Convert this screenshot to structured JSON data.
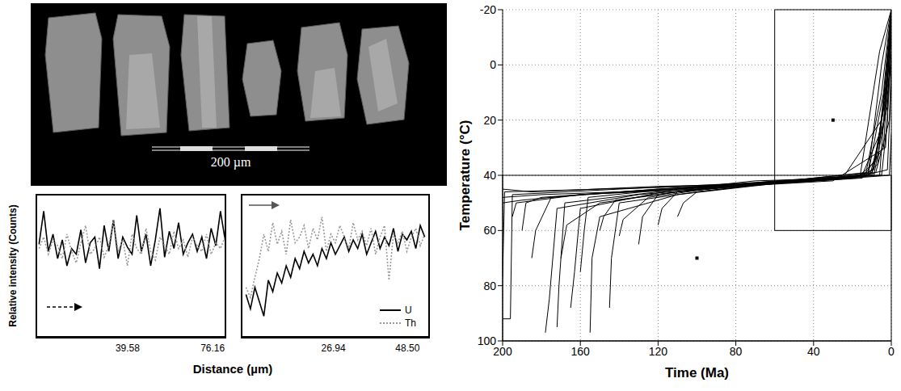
{
  "chart_data": [
    {
      "type": "image",
      "scale_bar": "200 µm"
    },
    {
      "type": "line",
      "xlabel": "Distance (µm)",
      "ylabel": "Relative intensity (Counts)",
      "tick_labels": "x",
      "legend": "lower right",
      "panels": [
        {
          "x": [
            1.5,
            3.5,
            5.5,
            7.5,
            9.5,
            11.5,
            13.5,
            15.5,
            17.5,
            19.5,
            21.5,
            23.5,
            25.5,
            27.5,
            29.5,
            31.5,
            33.5,
            35.5,
            37.5,
            39.5,
            41.5,
            43.5,
            45.5,
            47.5,
            49.5,
            51.5,
            53.5,
            55.5,
            57.5,
            59.5,
            61.5,
            63.5,
            65.5,
            67.5,
            69.5,
            71.5,
            73.5,
            75.5,
            77.5,
            79.5,
            81.5
          ],
          "xlim": [
            0,
            82
          ],
          "xticks": [
            39.58,
            76.16
          ],
          "ylim": [
            0,
            100
          ],
          "yticks": [],
          "series": [
            {
              "name": "U",
              "color": "#000000",
              "line_style": "solid",
              "values": [
                65,
                88,
                60,
                72,
                55,
                68,
                50,
                62,
                58,
                75,
                52,
                66,
                70,
                48,
                78,
                60,
                82,
                55,
                70,
                63,
                58,
                85,
                60,
                72,
                50,
                68,
                90,
                56,
                74,
                62,
                80,
                58,
                66,
                72,
                60,
                70,
                55,
                76,
                64,
                88,
                68
              ]
            },
            {
              "name": "Th",
              "color": "#999999",
              "line_style": "dotted",
              "values": [
                62,
                70,
                58,
                68,
                64,
                55,
                72,
                60,
                52,
                66,
                78,
                58,
                62,
                70,
                56,
                64,
                82,
                60,
                68,
                50,
                72,
                62,
                58,
                76,
                60,
                54,
                70,
                64,
                58,
                74,
                62,
                68,
                56,
                70,
                64,
                60,
                72,
                58,
                66,
                62,
                70
              ]
            }
          ]
        },
        {
          "x": [
            1.5,
            2.8,
            4.1,
            5.4,
            6.7,
            8.0,
            9.3,
            10.6,
            11.9,
            13.2,
            14.5,
            15.8,
            17.1,
            18.4,
            19.7,
            21.0,
            22.3,
            23.6,
            24.9,
            26.2,
            27.5,
            28.8,
            30.1,
            31.4,
            32.7,
            34.0,
            35.3,
            36.6,
            37.9,
            39.2,
            40.5,
            41.8,
            43.1,
            44.4,
            45.7,
            47.0,
            48.3,
            49.6,
            50.9,
            52.2,
            53.5
          ],
          "xlim": [
            0,
            55
          ],
          "xticks": [
            26.94,
            {
              "value": 48.5,
              "label": "48.50"
            }
          ],
          "ylim": [
            0,
            100
          ],
          "yticks": [],
          "series": [
            {
              "name": "U",
              "color": "#000000",
              "line_style": "solid",
              "values": [
                30,
                20,
                35,
                25,
                15,
                40,
                32,
                45,
                38,
                50,
                42,
                55,
                48,
                60,
                52,
                58,
                50,
                62,
                55,
                66,
                58,
                64,
                70,
                60,
                68,
                62,
                72,
                58,
                66,
                74,
                62,
                70,
                64,
                76,
                60,
                72,
                68,
                74,
                62,
                78,
                70
              ]
            },
            {
              "name": "Th",
              "color": "#999999",
              "line_style": "dotted",
              "values": [
                35,
                28,
                42,
                55,
                72,
                60,
                80,
                65,
                74,
                58,
                82,
                66,
                70,
                78,
                62,
                76,
                68,
                84,
                60,
                72,
                66,
                78,
                70,
                62,
                80,
                68,
                74,
                64,
                76,
                58,
                70,
                78,
                40,
                72,
                66,
                74,
                60,
                70,
                76,
                64,
                72
              ]
            }
          ]
        }
      ]
    },
    {
      "type": "line",
      "xlabel": "Time (Ma)",
      "ylabel": "Temperature (°C)",
      "xlim": [
        200,
        0
      ],
      "xticks": [
        200,
        160,
        120,
        80,
        40,
        0
      ],
      "ylim": [
        100,
        -20
      ],
      "yticks": [
        -20,
        0,
        20,
        40,
        60,
        80,
        100
      ],
      "grid": true,
      "color": "#000000",
      "boxes": [
        {
          "x": [
            60,
            0
          ],
          "y": [
            -20,
            60
          ]
        },
        {
          "x": [
            200,
            0
          ],
          "y": [
            40,
            100
          ]
        }
      ],
      "points": [
        {
          "x": 30,
          "y": 20
        },
        {
          "x": 100,
          "y": 70
        }
      ],
      "paths": [
        {
          "x": [
            200,
            196,
            195,
            140,
            80,
            30,
            6,
            0
          ],
          "y": [
            92,
            92,
            47,
            45,
            43,
            41,
            40,
            -18
          ]
        },
        {
          "x": [
            200,
            199,
            150,
            100,
            50,
            12,
            4,
            0
          ],
          "y": [
            77,
            46,
            45,
            44,
            42,
            40,
            10,
            -20
          ]
        },
        {
          "x": [
            200,
            185,
            120,
            60,
            20,
            9,
            2,
            0
          ],
          "y": [
            45,
            46,
            44,
            43,
            41,
            38,
            5,
            -10
          ]
        },
        {
          "x": [
            190,
            188,
            180,
            120,
            70,
            25,
            5,
            0
          ],
          "y": [
            60,
            50,
            48,
            45,
            43,
            41,
            20,
            0
          ]
        },
        {
          "x": [
            178,
            176,
            172,
            130,
            80,
            30,
            3,
            0
          ],
          "y": [
            97,
            85,
            52,
            47,
            44,
            42,
            30,
            -5
          ]
        },
        {
          "x": [
            172,
            171,
            168,
            120,
            60,
            15,
            6,
            0
          ],
          "y": [
            95,
            80,
            50,
            46,
            42,
            40,
            25,
            -15
          ]
        },
        {
          "x": [
            165,
            163,
            160,
            110,
            70,
            20,
            2,
            0
          ],
          "y": [
            88,
            75,
            52,
            45,
            42,
            41,
            38,
            5
          ]
        },
        {
          "x": [
            160,
            158,
            156,
            100,
            50,
            10,
            3,
            0
          ],
          "y": [
            75,
            60,
            48,
            44,
            42,
            40,
            12,
            -20
          ]
        },
        {
          "x": [
            155,
            154,
            150,
            110,
            60,
            18,
            8,
            0
          ],
          "y": [
            97,
            70,
            55,
            47,
            43,
            41,
            35,
            -8
          ]
        },
        {
          "x": [
            145,
            144,
            140,
            100,
            50,
            14,
            4,
            0
          ],
          "y": [
            88,
            70,
            50,
            46,
            42,
            40,
            30,
            -18
          ]
        },
        {
          "x": [
            150,
            148,
            142,
            100,
            40,
            8,
            1,
            0
          ],
          "y": [
            60,
            55,
            49,
            45,
            42,
            39,
            20,
            0
          ]
        },
        {
          "x": [
            130,
            128,
            120,
            90,
            50,
            12,
            5,
            0
          ],
          "y": [
            65,
            55,
            47,
            44,
            42,
            40,
            0,
            -20
          ]
        },
        {
          "x": [
            120,
            118,
            110,
            80,
            40,
            10,
            2,
            0
          ],
          "y": [
            58,
            52,
            46,
            44,
            41,
            39,
            15,
            -12
          ]
        },
        {
          "x": [
            200,
            190,
            160,
            110,
            60,
            15,
            7,
            0
          ],
          "y": [
            50,
            49,
            47,
            45,
            43,
            41,
            36,
            -18
          ]
        },
        {
          "x": [
            200,
            180,
            140,
            90,
            45,
            5,
            2,
            0
          ],
          "y": [
            48,
            47,
            46,
            44,
            42,
            40,
            20,
            -20
          ]
        },
        {
          "x": [
            185,
            183,
            175,
            120,
            65,
            20,
            1,
            0
          ],
          "y": [
            70,
            60,
            48,
            45,
            43,
            41,
            40,
            25
          ]
        },
        {
          "x": [
            140,
            138,
            125,
            95,
            55,
            16,
            6,
            0
          ],
          "y": [
            62,
            56,
            48,
            45,
            42,
            40,
            -5,
            -20
          ]
        },
        {
          "x": [
            170,
            167,
            150,
            110,
            60,
            11,
            3,
            0
          ],
          "y": [
            70,
            58,
            50,
            46,
            43,
            40,
            18,
            -3
          ]
        },
        {
          "x": [
            195,
            193,
            160,
            100,
            50,
            9,
            4,
            0
          ],
          "y": [
            55,
            50,
            47,
            45,
            42,
            40,
            22,
            -10
          ]
        },
        {
          "x": [
            110,
            107,
            100,
            75,
            40,
            13,
            5,
            0
          ],
          "y": [
            55,
            50,
            46,
            44,
            41,
            39,
            10,
            -20
          ]
        }
      ]
    }
  ]
}
